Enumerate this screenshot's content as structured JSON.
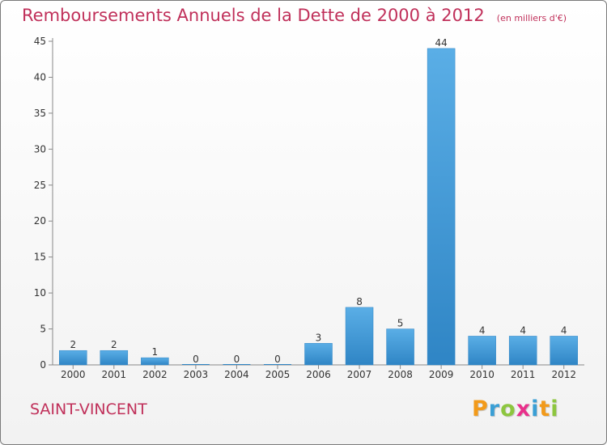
{
  "header": {
    "title": "Remboursements Annuels de la Dette de 2000 à 2012",
    "unit": "(en milliers d'€)"
  },
  "footer": {
    "city": "SAINT-VINCENT",
    "brand": "Proxiti",
    "brand_letters": [
      "P",
      "r",
      "o",
      "x",
      "i",
      "t",
      "i"
    ],
    "brand_colors": [
      "#f29a1a",
      "#3a9fd5",
      "#8dc63f",
      "#e8308b",
      "#3a9fd5",
      "#f29a1a",
      "#8dc63f"
    ]
  },
  "colors": {
    "title": "#c0305a",
    "bar_light": "#5aaee6",
    "bar_dark": "#2f85c5",
    "axis": "#888888",
    "label": "#333333"
  },
  "chart_data": {
    "type": "bar",
    "categories": [
      "2000",
      "2001",
      "2002",
      "2003",
      "2004",
      "2005",
      "2006",
      "2007",
      "2008",
      "2009",
      "2010",
      "2011",
      "2012"
    ],
    "values": [
      2,
      2,
      1,
      0,
      0,
      0,
      3,
      8,
      5,
      44,
      4,
      4,
      4
    ],
    "data_labels": [
      "2",
      "2",
      "1",
      "0",
      "0",
      "0",
      "3",
      "8",
      "5",
      "44",
      "4",
      "4",
      "4"
    ],
    "yticks": [
      0,
      5,
      10,
      15,
      20,
      25,
      30,
      35,
      40,
      45
    ],
    "ylim": [
      0,
      45
    ],
    "xlabel": "",
    "ylabel": "",
    "grid": false,
    "legend": "none"
  }
}
